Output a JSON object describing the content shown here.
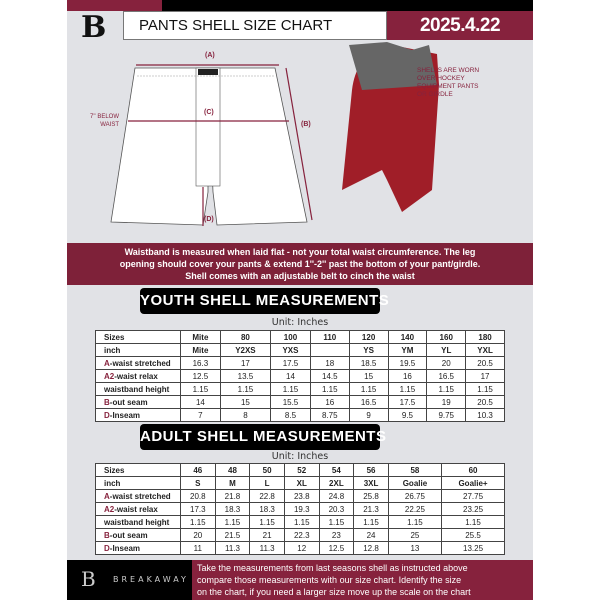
{
  "header": {
    "title": "PANTS SHELL SIZE CHART",
    "date": "2025.4.22",
    "logo": "B"
  },
  "diagram": {
    "a": "(A)",
    "b": "(B)",
    "c": "(C)",
    "d": "(D)",
    "below_waist_1": "7'' BELOW",
    "below_waist_2": "WAIST",
    "note": [
      "SHELLS ARE WORN",
      "OVER HOCKEY",
      "EQUIPMENT PANTS",
      "OR GIRDLE"
    ]
  },
  "info": [
    "Waistband is measured when laid flat - not your total waist circumference. The leg",
    "opening should cover your pants & extend 1''-2'' past the bottom of your pant/girdle.",
    "Shell comes with an adjustable belt to cinch the waist"
  ],
  "youth": {
    "heading": "YOUTH SHELL MEASUREMENTS",
    "unit": "Unit: Inches",
    "rows": [
      {
        "k": "",
        "label": "Sizes",
        "cells": [
          "Mite",
          "80",
          "100",
          "110",
          "120",
          "140",
          "160",
          "180"
        ]
      },
      {
        "k": "",
        "label": "inch",
        "cells": [
          "Mite",
          "Y2XS",
          "YXS",
          "",
          "YS",
          "YM",
          "YL",
          "YXL"
        ]
      },
      {
        "k": "A",
        "label": "-waist stretched",
        "cells": [
          "16.3",
          "17",
          "17.5",
          "18",
          "18.5",
          "19.5",
          "20",
          "20.5"
        ]
      },
      {
        "k": "A2",
        "label": "-waist relax",
        "cells": [
          "12.5",
          "13.5",
          "14",
          "14.5",
          "15",
          "16",
          "16.5",
          "17"
        ]
      },
      {
        "k": "",
        "label": "waistband height",
        "cells": [
          "1.15",
          "1.15",
          "1.15",
          "1.15",
          "1.15",
          "1.15",
          "1.15",
          "1.15"
        ]
      },
      {
        "k": "B",
        "label": "-out seam",
        "cells": [
          "14",
          "15",
          "15.5",
          "16",
          "16.5",
          "17.5",
          "19",
          "20.5"
        ]
      },
      {
        "k": "D",
        "label": "-Inseam",
        "cells": [
          "7",
          "8",
          "8.5",
          "8.75",
          "9",
          "9.5",
          "9.75",
          "10.3"
        ]
      }
    ]
  },
  "adult": {
    "heading": "ADULT SHELL MEASUREMENTS",
    "unit": "Unit: Inches",
    "rows": [
      {
        "k": "",
        "label": "Sizes",
        "cells": [
          "46",
          "48",
          "50",
          "52",
          "54",
          "56",
          "58",
          "60"
        ]
      },
      {
        "k": "",
        "label": "inch",
        "cells": [
          "S",
          "M",
          "L",
          "XL",
          "2XL",
          "3XL",
          "Goalie",
          "Goalie+"
        ]
      },
      {
        "k": "A",
        "label": "-waist stretched",
        "cells": [
          "20.8",
          "21.8",
          "22.8",
          "23.8",
          "24.8",
          "25.8",
          "26.75",
          "27.75"
        ]
      },
      {
        "k": "A2",
        "label": "-waist relax",
        "cells": [
          "17.3",
          "18.3",
          "18.3",
          "19.3",
          "20.3",
          "21.3",
          "22.25",
          "23.25"
        ]
      },
      {
        "k": "",
        "label": "waistband height",
        "cells": [
          "1.15",
          "1.15",
          "1.15",
          "1.15",
          "1.15",
          "1.15",
          "1.15",
          "1.15"
        ]
      },
      {
        "k": "B",
        "label": "-out seam",
        "cells": [
          "20",
          "21.5",
          "21",
          "22.3",
          "23",
          "24",
          "25",
          "25.5"
        ]
      },
      {
        "k": "D",
        "label": "-Inseam",
        "cells": [
          "11",
          "11.3",
          "11.3",
          "12",
          "12.5",
          "12.8",
          "13",
          "13.25"
        ]
      }
    ]
  },
  "footer": {
    "brand": "BREAKAWAY",
    "text": [
      "Take the measurements from last seasons shell as instructed above",
      "compare those measurements  with our size chart. Identify the size",
      "on the chart, if you need a larger size move up the scale on the chart"
    ]
  },
  "colors": {
    "accent": "#86223d",
    "dark": "#000000",
    "bg": "#e1e2e6"
  }
}
